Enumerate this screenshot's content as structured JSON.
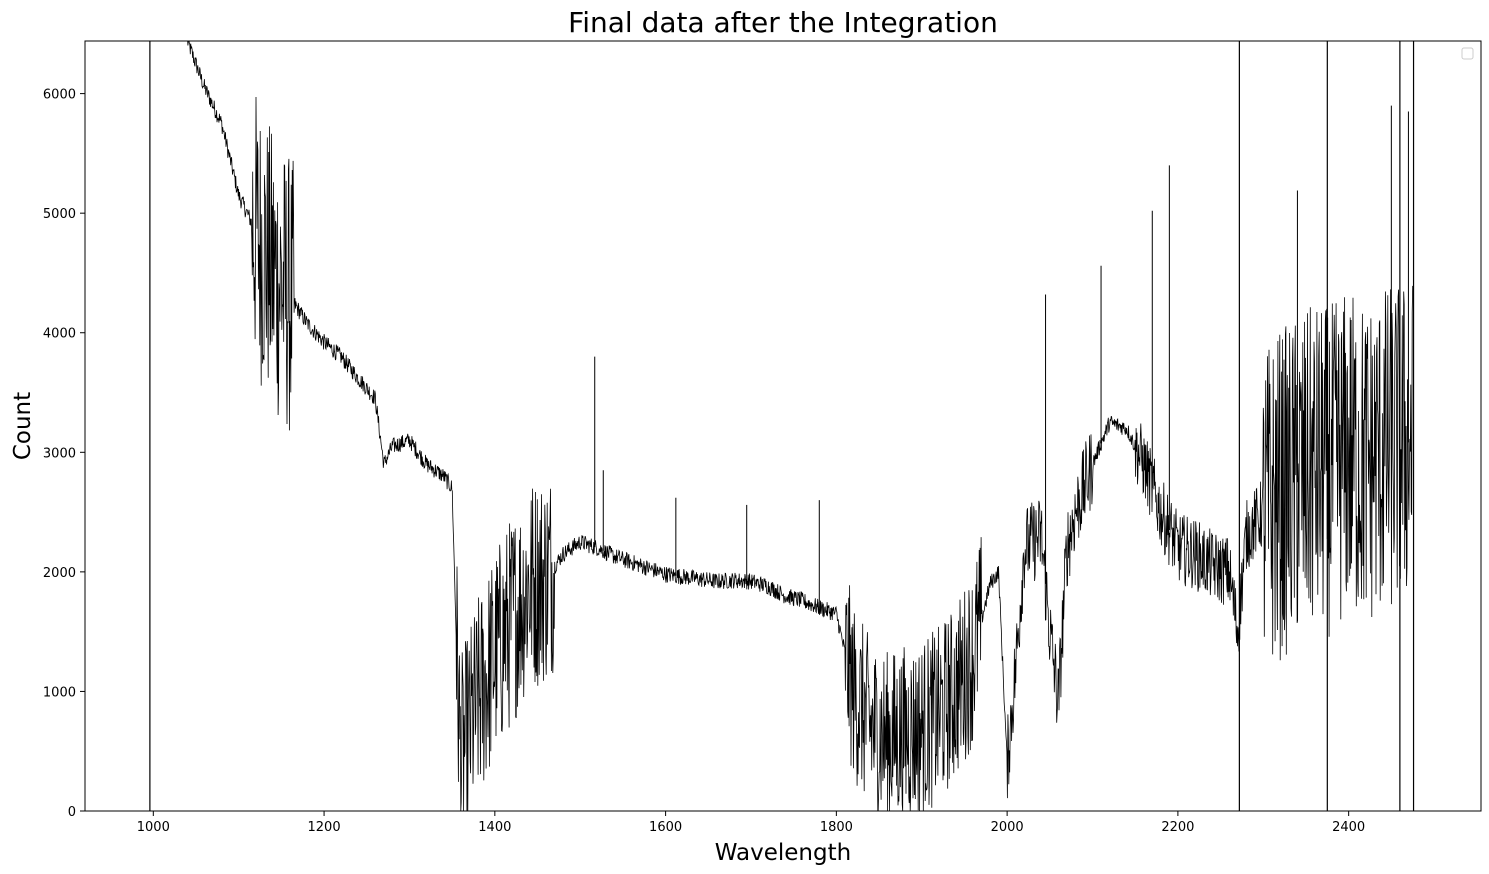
{
  "chart_data": {
    "type": "line",
    "title": "Final data after the Integration",
    "xlabel": "Wavelength",
    "ylabel": "Count",
    "xlim": [
      920,
      2555
    ],
    "ylim": [
      0,
      6440
    ],
    "xticks": [
      1000,
      1200,
      1400,
      1600,
      1800,
      2000,
      2200,
      2400
    ],
    "yticks": [
      0,
      1000,
      2000,
      3000,
      4000,
      5000,
      6000
    ],
    "grid": false,
    "legend": {
      "placement": "top-right",
      "entries": []
    },
    "line_color": "#000000",
    "series": [
      {
        "points": [
          [
            1040,
            6440
          ],
          [
            1060,
            6050
          ],
          [
            1080,
            5750
          ],
          [
            1100,
            5150
          ],
          [
            1120,
            4850
          ],
          [
            1140,
            4500
          ],
          [
            1160,
            4300
          ],
          [
            1180,
            4080
          ],
          [
            1200,
            3920
          ],
          [
            1220,
            3800
          ],
          [
            1240,
            3620
          ],
          [
            1260,
            3450
          ],
          [
            1270,
            2900
          ],
          [
            1280,
            3050
          ],
          [
            1300,
            3100
          ],
          [
            1320,
            2900
          ],
          [
            1340,
            2800
          ],
          [
            1350,
            2700
          ],
          [
            1355,
            1400
          ],
          [
            1360,
            400
          ],
          [
            1380,
            900
          ],
          [
            1400,
            1300
          ],
          [
            1420,
            1600
          ],
          [
            1440,
            1900
          ],
          [
            1460,
            1950
          ],
          [
            1480,
            2150
          ],
          [
            1500,
            2250
          ],
          [
            1520,
            2200
          ],
          [
            1540,
            2130
          ],
          [
            1560,
            2080
          ],
          [
            1580,
            2030
          ],
          [
            1600,
            1980
          ],
          [
            1620,
            1960
          ],
          [
            1640,
            1940
          ],
          [
            1660,
            1920
          ],
          [
            1680,
            1930
          ],
          [
            1700,
            1920
          ],
          [
            1720,
            1880
          ],
          [
            1740,
            1800
          ],
          [
            1760,
            1760
          ],
          [
            1780,
            1700
          ],
          [
            1800,
            1650
          ],
          [
            1820,
            1000
          ],
          [
            1840,
            700
          ],
          [
            1860,
            600
          ],
          [
            1880,
            650
          ],
          [
            1900,
            700
          ],
          [
            1920,
            800
          ],
          [
            1940,
            1000
          ],
          [
            1960,
            1300
          ],
          [
            1980,
            1900
          ],
          [
            1990,
            2000
          ],
          [
            2000,
            400
          ],
          [
            2010,
            1200
          ],
          [
            2020,
            2200
          ],
          [
            2040,
            2300
          ],
          [
            2050,
            1500
          ],
          [
            2060,
            900
          ],
          [
            2070,
            2200
          ],
          [
            2080,
            2500
          ],
          [
            2100,
            2900
          ],
          [
            2120,
            3250
          ],
          [
            2140,
            3200
          ],
          [
            2160,
            2900
          ],
          [
            2180,
            2500
          ],
          [
            2200,
            2200
          ],
          [
            2220,
            2150
          ],
          [
            2240,
            2050
          ],
          [
            2260,
            2000
          ],
          [
            2270,
            1500
          ],
          [
            2280,
            2300
          ],
          [
            2300,
            2500
          ],
          [
            2320,
            2650
          ],
          [
            2340,
            2750
          ],
          [
            2360,
            2850
          ],
          [
            2380,
            2850
          ],
          [
            2400,
            3000
          ],
          [
            2420,
            2900
          ],
          [
            2440,
            3000
          ],
          [
            2460,
            3050
          ],
          [
            2475,
            3100
          ]
        ],
        "vertical_lines_x": [
          996,
          2272,
          2375,
          2460,
          2476
        ],
        "noise_regions": [
          {
            "x": [
              1115,
              1165
            ],
            "amplitude": 1200
          },
          {
            "x": [
              1355,
              1470
            ],
            "amplitude": 900
          },
          {
            "x": [
              1810,
              1970
            ],
            "amplitude": 750
          },
          {
            "x": [
              2000,
              2100
            ],
            "amplitude": 350
          },
          {
            "x": [
              2150,
              2300
            ],
            "amplitude": 300
          },
          {
            "x": [
              2300,
              2480
            ],
            "amplitude": 1400
          }
        ],
        "spikes": [
          [
            1517,
            3800
          ],
          [
            1527,
            2850
          ],
          [
            1612,
            2620
          ],
          [
            1695,
            2560
          ],
          [
            1780,
            2600
          ],
          [
            2045,
            4320
          ],
          [
            2110,
            4560
          ],
          [
            2170,
            5020
          ],
          [
            2190,
            5400
          ],
          [
            2340,
            5190
          ],
          [
            2450,
            5900
          ],
          [
            2470,
            5850
          ]
        ]
      }
    ]
  }
}
